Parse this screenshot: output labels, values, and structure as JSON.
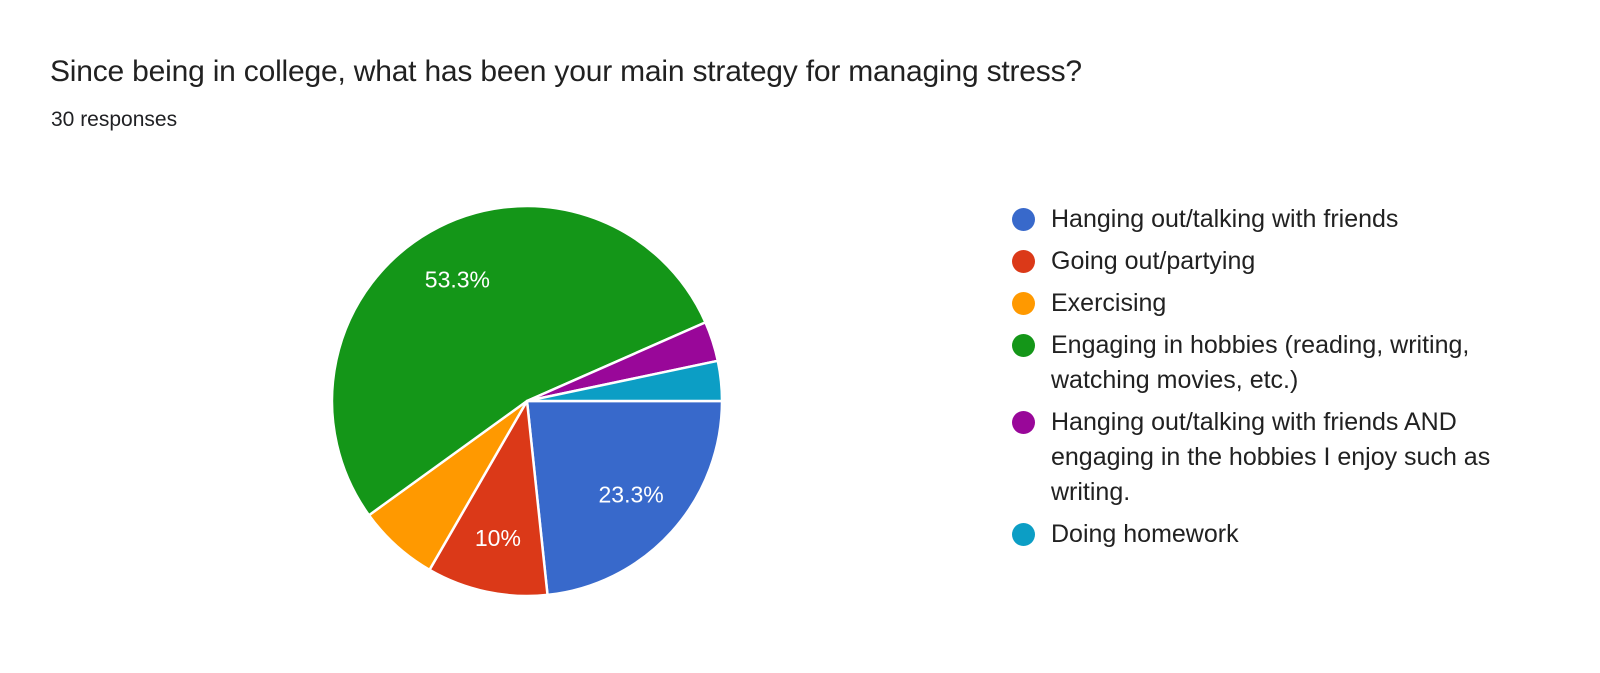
{
  "header": {
    "title": "Since being in college, what has been your main strategy for managing stress?",
    "subtitle": "30 responses"
  },
  "chart_data": {
    "type": "pie",
    "title": "Since being in college, what has been your main strategy for managing stress?",
    "subtitle": "30 responses",
    "total_responses": 30,
    "start_angle_deg": 0,
    "direction": "clockwise",
    "legend_position": "right",
    "label_color": "#ffffff",
    "slices": [
      {
        "label": "Hanging out/talking with friends",
        "color": "#3869CB",
        "percent": 23.3,
        "value": 7,
        "percent_label": "23.3%"
      },
      {
        "label": "Going out/partying",
        "color": "#DB3918",
        "percent": 10,
        "value": 3,
        "percent_label": "10%"
      },
      {
        "label": "Exercising",
        "color": "#FF9900",
        "percent": 6.7,
        "value": 2,
        "percent_label": ""
      },
      {
        "label": "Engaging in hobbies (reading, writing, watching movies, etc.)",
        "color": "#149618",
        "percent": 53.3,
        "value": 16,
        "percent_label": "53.3%"
      },
      {
        "label": "Hanging out/talking with friends AND engaging in the hobbies I enjoy such as writing.",
        "color": "#990799",
        "percent": 3.3,
        "value": 1,
        "percent_label": ""
      },
      {
        "label": "Doing homework",
        "color": "#0C9EC5",
        "percent": 3.3,
        "value": 1,
        "percent_label": ""
      }
    ]
  }
}
